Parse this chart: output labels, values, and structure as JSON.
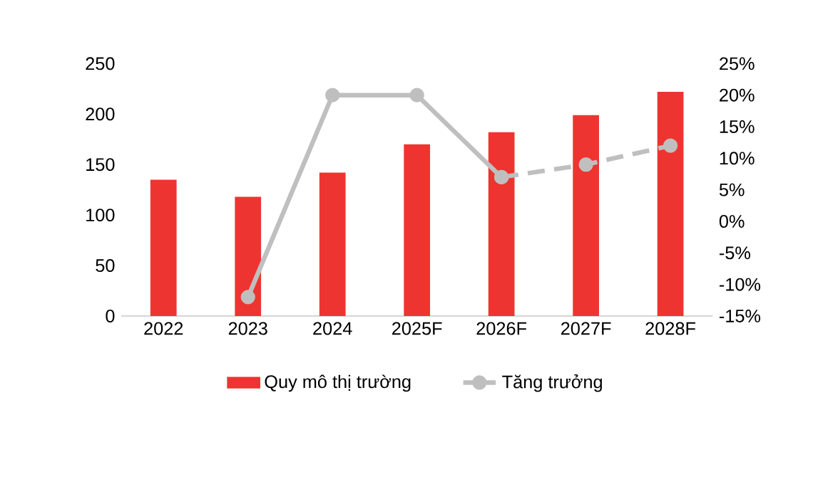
{
  "chart_data": {
    "type": "bar",
    "categories": [
      "2022",
      "2023",
      "2024",
      "2025F",
      "2026F",
      "2027F",
      "2028F"
    ],
    "series": [
      {
        "name": "Quy mô thị trường",
        "color": "#ee3431",
        "values": [
          135,
          118,
          142,
          170,
          182,
          199,
          222
        ]
      },
      {
        "name": "Tăng trưởng",
        "type": "line",
        "axis": "y2",
        "color": "#bfbfbf",
        "line_style": "solid",
        "values": [
          null,
          -12,
          20,
          20,
          7,
          null,
          null
        ]
      },
      {
        "type": "line",
        "axis": "y2",
        "color": "#bfbfbf",
        "line_style": "dashed",
        "values": [
          null,
          null,
          null,
          null,
          7,
          9,
          12
        ]
      }
    ],
    "ylim": [
      0,
      250
    ],
    "yticks": [
      0,
      50,
      100,
      150,
      200,
      250
    ],
    "y2lim": [
      -15,
      25
    ],
    "y2ticks": [
      {
        "value": -15,
        "label": "-15%"
      },
      {
        "value": -10,
        "label": "-10%"
      },
      {
        "value": -5,
        "label": "-5%"
      },
      {
        "value": 0,
        "label": "0%"
      },
      {
        "value": 5,
        "label": "5%"
      },
      {
        "value": 10,
        "label": "10%"
      },
      {
        "value": 15,
        "label": "15%"
      },
      {
        "value": 20,
        "label": "20%"
      },
      {
        "value": 25,
        "label": "25%"
      }
    ],
    "marker": "circle",
    "legend": "bottom",
    "grid": false
  }
}
